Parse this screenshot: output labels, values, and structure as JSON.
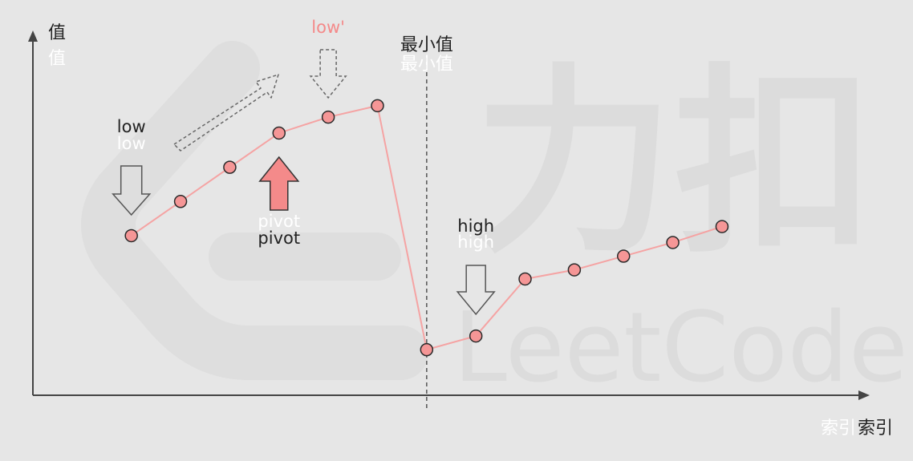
{
  "axes": {
    "y_label": "值",
    "x_label": "索引"
  },
  "labels": {
    "low": "low",
    "low_prime": "low'",
    "pivot": "pivot",
    "min_value": "最小值",
    "high": "high"
  },
  "watermark": {
    "text": "LeetCode",
    "cjk": "力扣"
  },
  "chart_data": {
    "type": "line",
    "series": [
      {
        "values": [
          7,
          8.5,
          10,
          11.5,
          12.2,
          12.7,
          2,
          2.6,
          5.1,
          5.5,
          6.1,
          6.7,
          7.4
        ]
      }
    ],
    "x": [
      0,
      1,
      2,
      3,
      4,
      5,
      6,
      7,
      8,
      9,
      10,
      11,
      12
    ],
    "xlim": [
      -2,
      15
    ],
    "ylim": [
      0,
      16
    ],
    "min_index": 6,
    "markers": {
      "low_index": 0,
      "pivot_index": 3,
      "low_prime_index": 4,
      "high_index": 7
    },
    "colors": {
      "line": "#f5a3a3",
      "point_fill": "#f59696",
      "point_stroke": "#2a2a2a",
      "pivot_arrow": "#f48a8a",
      "axis": "#444444",
      "ghost_text": "#ffffff",
      "low_prime_text": "#f48a8a"
    }
  }
}
